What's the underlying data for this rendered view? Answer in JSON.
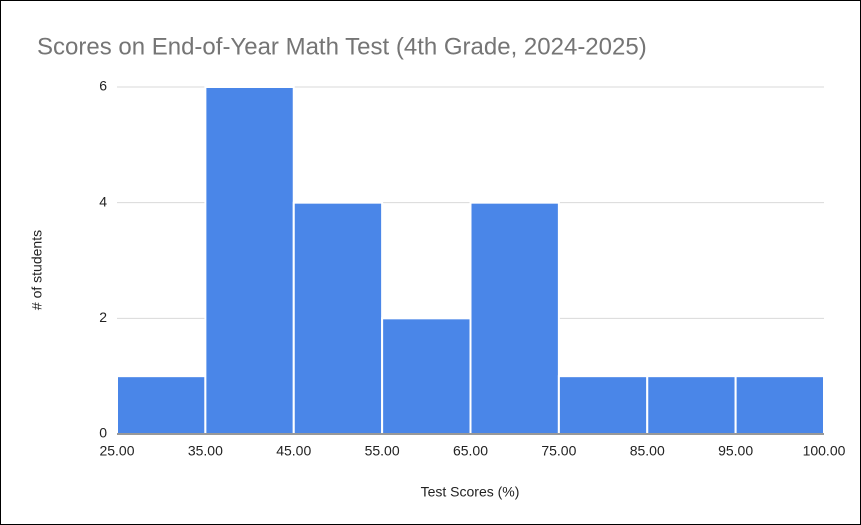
{
  "chart_data": {
    "type": "histogram",
    "title": "Scores on End-of-Year Math Test (4th Grade, 2024-2025)",
    "x_label": "Test Scores (%)",
    "y_label": "# of students",
    "bins": [
      25,
      35,
      45,
      55,
      65,
      75,
      85,
      95,
      100
    ],
    "values": [
      1,
      6,
      4,
      2,
      4,
      1,
      1,
      1
    ],
    "color": "#4a86e8",
    "xlim": [
      25,
      100
    ],
    "xticks": [
      {
        "value": 25,
        "label": "25.00"
      },
      {
        "value": 35,
        "label": "35.00"
      },
      {
        "value": 45,
        "label": "45.00"
      },
      {
        "value": 55,
        "label": "55.00"
      },
      {
        "value": 65,
        "label": "65.00"
      },
      {
        "value": 75,
        "label": "75.00"
      },
      {
        "value": 85,
        "label": "85.00"
      },
      {
        "value": 95,
        "label": "95.00"
      },
      {
        "value": 100,
        "label": "100.00"
      }
    ],
    "ylim": [
      0,
      6
    ],
    "yticks": [
      0,
      2,
      4,
      6
    ],
    "grid": true
  }
}
